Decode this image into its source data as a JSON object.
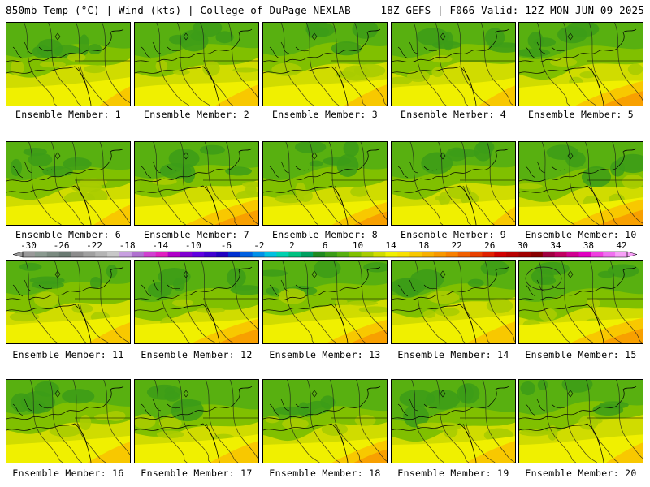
{
  "header": {
    "left": "850mb Temp (°C) | Wind (kts) | College of DuPage NEXLAB",
    "right": "18Z GEFS | F066 Valid: 12Z MON JUN 09 2025"
  },
  "members": [
    {
      "label": "Ensemble Member: 1",
      "green": 0.55,
      "warm": 0.25
    },
    {
      "label": "Ensemble Member: 2",
      "green": 0.55,
      "warm": 0.35
    },
    {
      "label": "Ensemble Member: 3",
      "green": 0.5,
      "warm": 0.35
    },
    {
      "label": "Ensemble Member: 4",
      "green": 0.55,
      "warm": 0.3
    },
    {
      "label": "Ensemble Member: 5",
      "green": 0.6,
      "warm": 0.55
    },
    {
      "label": "Ensemble Member: 6",
      "green": 0.65,
      "warm": 0.3
    },
    {
      "label": "Ensemble Member: 7",
      "green": 0.6,
      "warm": 0.6
    },
    {
      "label": "Ensemble Member: 8",
      "green": 0.65,
      "warm": 0.45
    },
    {
      "label": "Ensemble Member: 9",
      "green": 0.6,
      "warm": 0.2
    },
    {
      "label": "Ensemble Member: 10",
      "green": 0.7,
      "warm": 0.6
    },
    {
      "label": "Ensemble Member: 11",
      "green": 0.55,
      "warm": 0.35
    },
    {
      "label": "Ensemble Member: 12",
      "green": 0.75,
      "warm": 0.55
    },
    {
      "label": "Ensemble Member: 13",
      "green": 0.6,
      "warm": 0.5
    },
    {
      "label": "Ensemble Member: 14",
      "green": 0.6,
      "warm": 0.4
    },
    {
      "label": "Ensemble Member: 15",
      "green": 0.75,
      "warm": 0.6
    },
    {
      "label": "Ensemble Member: 16",
      "green": 0.55,
      "warm": 0.35
    },
    {
      "label": "Ensemble Member: 17",
      "green": 0.65,
      "warm": 0.4
    },
    {
      "label": "Ensemble Member: 18",
      "green": 0.7,
      "warm": 0.45
    },
    {
      "label": "Ensemble Member: 19",
      "green": 0.75,
      "warm": 0.4
    },
    {
      "label": "Ensemble Member: 20",
      "green": 0.55,
      "warm": 0.3
    }
  ],
  "colorbar": {
    "ticks": [
      "-30",
      "-26",
      "-22",
      "-18",
      "-14",
      "-10",
      "-6",
      "-2",
      "2",
      "6",
      "10",
      "14",
      "18",
      "22",
      "26",
      "30",
      "34",
      "38",
      "42"
    ],
    "colors": [
      "#9a9a9a",
      "#8a9a90",
      "#7a8a80",
      "#6a7a72",
      "#8c8c8c",
      "#a0a0a0",
      "#b4b4b4",
      "#c8c8c8",
      "#c8a0e0",
      "#b070d0",
      "#d040d0",
      "#e020c0",
      "#b000c8",
      "#8000d0",
      "#6000e0",
      "#4000d0",
      "#2000c0",
      "#0030d0",
      "#0060e0",
      "#0090e8",
      "#00c0e0",
      "#00d0b0",
      "#00c080",
      "#00a060",
      "#208a20",
      "#3c9c18",
      "#58b010",
      "#80c000",
      "#a8cc00",
      "#d0dc00",
      "#f0f000",
      "#f8e000",
      "#f8c800",
      "#f8b000",
      "#f89800",
      "#f88000",
      "#f06000",
      "#e84000",
      "#e02000",
      "#d00000",
      "#b80000",
      "#a00000",
      "#880000",
      "#a00040",
      "#c00060",
      "#d00090",
      "#e000c0",
      "#f040e0",
      "#f070f0",
      "#f8a0f8"
    ]
  }
}
